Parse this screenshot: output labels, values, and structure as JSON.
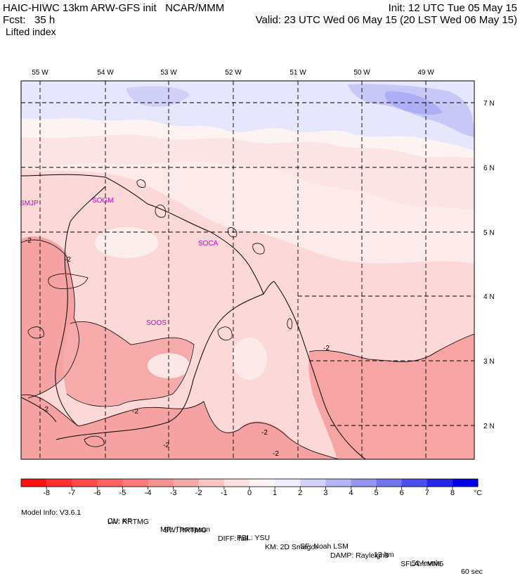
{
  "header": {
    "title": "HAIC-HIWC 13km ARW-GFS init   NCAR/MMM",
    "init": "Init: 12 UTC Tue 05 May 15",
    "fcst_label": "Fcst:",
    "fcst_value": "35 h",
    "valid": "Valid: 23 UTC Wed 06 May 15 (20 LST Wed 06 May 15)",
    "field": "Lifted index"
  },
  "map": {
    "lon_labels": [
      "55 W",
      "54 W",
      "53 W",
      "52 W",
      "51 W",
      "50 W",
      "49 W"
    ],
    "lat_labels": [
      "7 N",
      "6 N",
      "5 N",
      "4 N",
      "3 N",
      "2 N"
    ],
    "stations": [
      "SMJP",
      "SOGM",
      "SOCA",
      "SOOS"
    ],
    "contour_labels": [
      "-2",
      "-2",
      "-2",
      "-2",
      "-2",
      "-2",
      "-2",
      "-2"
    ]
  },
  "colorbar": {
    "ticks": [
      "-8",
      "-7",
      "-6",
      "-5",
      "-4",
      "-3",
      "-2",
      "-1",
      "0",
      "1",
      "2",
      "3",
      "4",
      "5",
      "6",
      "7",
      "8"
    ],
    "unit": "°C",
    "colors": [
      "#ff1010",
      "#ff2f2f",
      "#ff4a4a",
      "#ff6262",
      "#fb7b7b",
      "#f79393",
      "#f7a9a9",
      "#fbc5c5",
      "#fde1e1",
      "#fdf3f3",
      "#eeeeff",
      "#d2d2fb",
      "#b4b4f6",
      "#9696f2",
      "#7474ee",
      "#4d4dec",
      "#2626ea",
      "#0000e8"
    ]
  },
  "footer": {
    "line1": [
      "Model Info: V3.6.1",
      "CU: KF",
      "MP: Thompson",
      "PBL: YSU",
      "SF: Noah LSM",
      "13 km",
      "51 levels",
      "60 sec"
    ],
    "line2": [
      "LW: RRTMG",
      "SW: RRTMG",
      "DIFF: full",
      "KM: 2D Smagor",
      "DAMP: Rayleigh3",
      "SFLAY: MM5"
    ]
  }
}
